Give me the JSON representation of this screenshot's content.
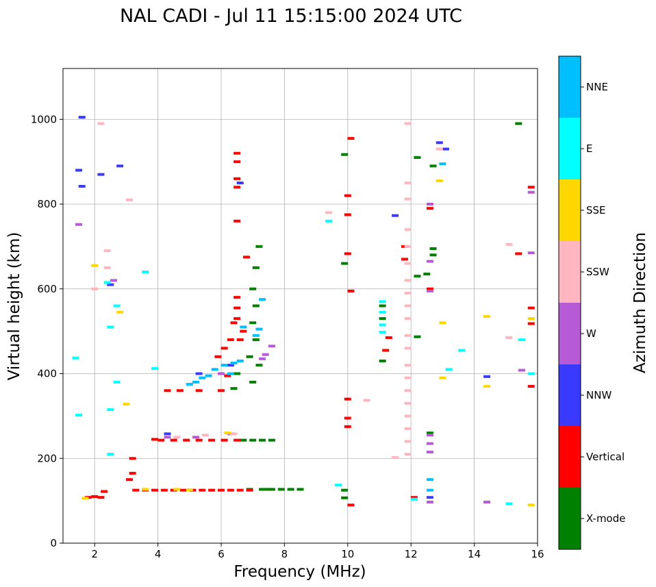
{
  "chart_data": {
    "type": "scatter",
    "title": "NAL CADI - Jul 11 15:15:00 2024 UTC",
    "xlabel": "Frequency (MHz)",
    "ylabel": "Virtual height (km)",
    "xlim": [
      1,
      16
    ],
    "ylim": [
      0,
      1120
    ],
    "xticks": [
      2,
      4,
      6,
      8,
      10,
      12,
      14,
      16
    ],
    "yticks": [
      0,
      200,
      400,
      600,
      800,
      1000
    ],
    "grid": true,
    "colorbar": {
      "label": "Azimuth Direction",
      "categories": [
        {
          "name": "X-mode",
          "color": "#008000"
        },
        {
          "name": "Vertical",
          "color": "#ff0000"
        },
        {
          "name": "NNW",
          "color": "#3a3aff"
        },
        {
          "name": "W",
          "color": "#b65ad6"
        },
        {
          "name": "SSW",
          "color": "#ffb6c1"
        },
        {
          "name": "SSE",
          "color": "#ffd700"
        },
        {
          "name": "E",
          "color": "#00ffff"
        },
        {
          "name": "NNE",
          "color": "#00bfff"
        }
      ]
    },
    "series": [
      {
        "name": "X-mode",
        "points": [
          [
            8.5,
            127
          ],
          [
            8.2,
            127
          ],
          [
            7.9,
            127
          ],
          [
            7.6,
            127
          ],
          [
            7.3,
            127
          ],
          [
            7.6,
            243
          ],
          [
            7.3,
            243
          ],
          [
            7.0,
            243
          ],
          [
            6.7,
            243
          ],
          [
            7.2,
            700
          ],
          [
            7.1,
            650
          ],
          [
            7.0,
            600
          ],
          [
            7.1,
            560
          ],
          [
            7.0,
            520
          ],
          [
            7.1,
            480
          ],
          [
            6.9,
            440
          ],
          [
            7.2,
            420
          ],
          [
            7.0,
            380
          ],
          [
            6.4,
            365
          ],
          [
            6.5,
            400
          ],
          [
            12.7,
            890
          ],
          [
            12.7,
            695
          ],
          [
            12.7,
            680
          ],
          [
            12.5,
            635
          ],
          [
            12.2,
            910
          ],
          [
            12.2,
            630
          ],
          [
            12.2,
            487
          ],
          [
            15.4,
            990
          ],
          [
            9.9,
            917
          ],
          [
            9.9,
            660
          ],
          [
            9.9,
            125
          ],
          [
            9.9,
            107
          ],
          [
            11.1,
            560
          ],
          [
            11.1,
            530
          ],
          [
            11.1,
            430
          ],
          [
            12.6,
            260
          ],
          [
            7.5,
            127
          ],
          [
            6.9,
            127
          ]
        ]
      },
      {
        "name": "Vertical",
        "points": [
          [
            4.8,
            125
          ],
          [
            4.5,
            125
          ],
          [
            4.2,
            125
          ],
          [
            3.9,
            125
          ],
          [
            3.6,
            125
          ],
          [
            3.3,
            125
          ],
          [
            5.1,
            125
          ],
          [
            5.4,
            125
          ],
          [
            5.7,
            125
          ],
          [
            6.0,
            125
          ],
          [
            6.3,
            125
          ],
          [
            6.6,
            125
          ],
          [
            6.9,
            125
          ],
          [
            3.2,
            165
          ],
          [
            3.2,
            200
          ],
          [
            3.1,
            150
          ],
          [
            4.5,
            243
          ],
          [
            4.9,
            243
          ],
          [
            5.3,
            243
          ],
          [
            5.7,
            243
          ],
          [
            6.1,
            243
          ],
          [
            6.5,
            243
          ],
          [
            4.1,
            243
          ],
          [
            3.9,
            245
          ],
          [
            4.3,
            360
          ],
          [
            4.7,
            360
          ],
          [
            5.3,
            360
          ],
          [
            6.0,
            360
          ],
          [
            6.2,
            395
          ],
          [
            6.5,
            920
          ],
          [
            6.5,
            900
          ],
          [
            6.5,
            860
          ],
          [
            6.5,
            840
          ],
          [
            6.5,
            760
          ],
          [
            6.5,
            580
          ],
          [
            6.5,
            555
          ],
          [
            6.5,
            530
          ],
          [
            6.4,
            520
          ],
          [
            6.7,
            500
          ],
          [
            6.3,
            480
          ],
          [
            6.1,
            460
          ],
          [
            5.9,
            440
          ],
          [
            6.8,
            675
          ],
          [
            6.6,
            480
          ],
          [
            12.6,
            790
          ],
          [
            12.6,
            600
          ],
          [
            11.8,
            700
          ],
          [
            11.8,
            670
          ],
          [
            11.3,
            485
          ],
          [
            11.2,
            455
          ],
          [
            10.1,
            595
          ],
          [
            10.1,
            955
          ],
          [
            10.0,
            820
          ],
          [
            10.0,
            775
          ],
          [
            10.0,
            683
          ],
          [
            10.0,
            340
          ],
          [
            10.0,
            295
          ],
          [
            10.0,
            275
          ],
          [
            10.1,
            90
          ],
          [
            15.8,
            555
          ],
          [
            15.8,
            518
          ],
          [
            15.8,
            370
          ],
          [
            15.8,
            840
          ],
          [
            15.4,
            683
          ],
          [
            2.2,
            108
          ],
          [
            2.3,
            122
          ],
          [
            1.8,
            108
          ],
          [
            2.0,
            110
          ],
          [
            12.1,
            108
          ]
        ]
      },
      {
        "name": "NNW",
        "points": [
          [
            1.6,
            1005
          ],
          [
            2.2,
            870
          ],
          [
            2.8,
            890
          ],
          [
            6.6,
            850
          ],
          [
            13.1,
            930
          ],
          [
            11.5,
            773
          ],
          [
            12.9,
            945
          ],
          [
            14.4,
            393
          ],
          [
            6.3,
            420
          ],
          [
            4.3,
            258
          ],
          [
            12.6,
            108
          ],
          [
            1.5,
            880
          ],
          [
            5.3,
            400
          ],
          [
            2.5,
            610
          ],
          [
            1.6,
            842
          ]
        ]
      },
      {
        "name": "W",
        "points": [
          [
            7.6,
            465
          ],
          [
            7.4,
            445
          ],
          [
            7.3,
            435
          ],
          [
            12.6,
            800
          ],
          [
            12.6,
            665
          ],
          [
            12.6,
            595
          ],
          [
            12.6,
            255
          ],
          [
            12.6,
            235
          ],
          [
            12.6,
            215
          ],
          [
            12.6,
            97
          ],
          [
            14.4,
            97
          ],
          [
            15.5,
            408
          ],
          [
            15.8,
            685
          ],
          [
            15.8,
            828
          ],
          [
            6.0,
            400
          ],
          [
            1.5,
            752
          ],
          [
            2.6,
            620
          ],
          [
            4.3,
            250
          ],
          [
            5.2,
            250
          ],
          [
            6.3,
            258
          ]
        ]
      },
      {
        "name": "SSW",
        "points": [
          [
            11.9,
            990
          ],
          [
            11.9,
            850
          ],
          [
            11.9,
            812
          ],
          [
            11.9,
            740
          ],
          [
            11.9,
            700
          ],
          [
            11.9,
            660
          ],
          [
            11.9,
            620
          ],
          [
            11.9,
            590
          ],
          [
            11.9,
            560
          ],
          [
            11.9,
            530
          ],
          [
            11.9,
            490
          ],
          [
            11.9,
            460
          ],
          [
            11.9,
            420
          ],
          [
            11.9,
            390
          ],
          [
            11.9,
            360
          ],
          [
            11.9,
            330
          ],
          [
            11.9,
            300
          ],
          [
            11.9,
            270
          ],
          [
            11.9,
            240
          ],
          [
            11.9,
            210
          ],
          [
            12.9,
            930
          ],
          [
            15.1,
            705
          ],
          [
            15.1,
            485
          ],
          [
            10.6,
            337
          ],
          [
            9.4,
            780
          ],
          [
            11.5,
            202
          ],
          [
            4.6,
            250
          ],
          [
            5.5,
            255
          ],
          [
            6.4,
            258
          ],
          [
            2.4,
            690
          ],
          [
            2.4,
            650
          ],
          [
            2.2,
            990
          ],
          [
            3.1,
            810
          ],
          [
            2.0,
            600
          ]
        ]
      },
      {
        "name": "SSE",
        "points": [
          [
            13.0,
            520
          ],
          [
            13.0,
            390
          ],
          [
            14.4,
            535
          ],
          [
            14.4,
            370
          ],
          [
            15.8,
            530
          ],
          [
            15.8,
            90
          ],
          [
            6.2,
            260
          ],
          [
            5.0,
            126
          ],
          [
            3.6,
            127
          ],
          [
            4.6,
            127
          ],
          [
            2.8,
            545
          ],
          [
            3.0,
            328
          ],
          [
            1.7,
            106
          ],
          [
            2.0,
            655
          ],
          [
            12.9,
            855
          ]
        ]
      },
      {
        "name": "E",
        "points": [
          [
            15.5,
            480
          ],
          [
            15.8,
            400
          ],
          [
            15.1,
            93
          ],
          [
            13.6,
            455
          ],
          [
            13.2,
            410
          ],
          [
            9.4,
            760
          ],
          [
            9.7,
            137
          ],
          [
            11.1,
            570
          ],
          [
            11.1,
            545
          ],
          [
            11.1,
            515
          ],
          [
            11.1,
            498
          ],
          [
            12.1,
            104
          ],
          [
            2.5,
            210
          ],
          [
            2.5,
            315
          ],
          [
            2.7,
            380
          ],
          [
            2.7,
            560
          ],
          [
            2.5,
            510
          ],
          [
            1.4,
            437
          ],
          [
            1.5,
            302
          ],
          [
            3.9,
            412
          ],
          [
            3.6,
            640
          ],
          [
            2.4,
            615
          ]
        ]
      },
      {
        "name": "NNE",
        "points": [
          [
            12.6,
            150
          ],
          [
            12.6,
            125
          ],
          [
            7.3,
            575
          ],
          [
            6.7,
            510
          ],
          [
            6.6,
            430
          ],
          [
            6.4,
            425
          ],
          [
            6.1,
            420
          ],
          [
            5.8,
            410
          ],
          [
            5.6,
            395
          ],
          [
            5.4,
            390
          ],
          [
            5.2,
            380
          ],
          [
            5.0,
            375
          ],
          [
            7.2,
            505
          ],
          [
            7.1,
            490
          ],
          [
            6.3,
            400
          ],
          [
            13.0,
            895
          ]
        ]
      }
    ]
  }
}
